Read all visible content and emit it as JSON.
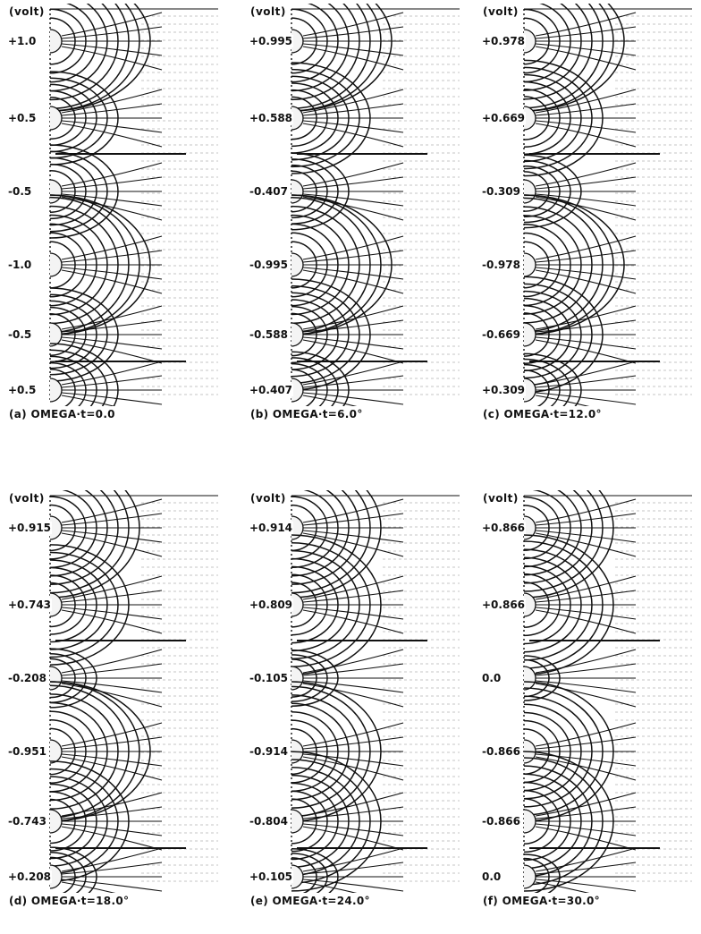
{
  "unit_label": "(volt)",
  "panels": [
    {
      "caption": "(a) OMEGA·t=0.0",
      "conductors": [
        {
          "label": "+1.0",
          "size": 1.0
        },
        {
          "label": "+0.5",
          "size": 0.5
        },
        {
          "label": "-0.5",
          "size": 0.5
        },
        {
          "label": "-1.0",
          "size": 1.0
        },
        {
          "label": "-0.5",
          "size": 0.5
        },
        {
          "label": "+0.5",
          "size": 0.5
        }
      ]
    },
    {
      "caption": "(b) OMEGA·t=6.0°",
      "conductors": [
        {
          "label": "+0.995",
          "size": 0.995
        },
        {
          "label": "+0.588",
          "size": 0.588
        },
        {
          "label": "-0.407",
          "size": 0.407
        },
        {
          "label": "-0.995",
          "size": 0.995
        },
        {
          "label": "-0.588",
          "size": 0.588
        },
        {
          "label": "+0.407",
          "size": 0.407
        }
      ]
    },
    {
      "caption": "(c) OMEGA·t=12.0°",
      "conductors": [
        {
          "label": "+0.978",
          "size": 0.978
        },
        {
          "label": "+0.669",
          "size": 0.669
        },
        {
          "label": "-0.309",
          "size": 0.309
        },
        {
          "label": "-0.978",
          "size": 0.978
        },
        {
          "label": "-0.669",
          "size": 0.669
        },
        {
          "label": "+0.309",
          "size": 0.309
        }
      ]
    },
    {
      "caption": "(d) OMEGA·t=18.0°",
      "conductors": [
        {
          "label": "+0.915",
          "size": 0.915
        },
        {
          "label": "+0.743",
          "size": 0.743
        },
        {
          "label": "-0.208",
          "size": 0.208
        },
        {
          "label": "-0.951",
          "size": 0.951
        },
        {
          "label": "-0.743",
          "size": 0.743
        },
        {
          "label": "+0.208",
          "size": 0.208
        }
      ]
    },
    {
      "caption": "(e) OMEGA·t=24.0°",
      "conductors": [
        {
          "label": "+0.914",
          "size": 0.914
        },
        {
          "label": "+0.809",
          "size": 0.809
        },
        {
          "label": "-0.105",
          "size": 0.105
        },
        {
          "label": "-0.914",
          "size": 0.914
        },
        {
          "label": "-0.804",
          "size": 0.804
        },
        {
          "label": "+0.105",
          "size": 0.105
        }
      ]
    },
    {
      "caption": "(f) OMEGA·t=30.0°",
      "conductors": [
        {
          "label": "+0.866",
          "size": 0.866
        },
        {
          "label": "+0.866",
          "size": 0.866
        },
        {
          "label": "0.0",
          "size": 0.0
        },
        {
          "label": "-0.866",
          "size": 0.866
        },
        {
          "label": "-0.866",
          "size": 0.866
        },
        {
          "label": "0.0",
          "size": 0.0
        }
      ]
    }
  ],
  "colors": {
    "ink": "#111111",
    "grid": "#8a8a8a",
    "paper": "#ffffff"
  }
}
